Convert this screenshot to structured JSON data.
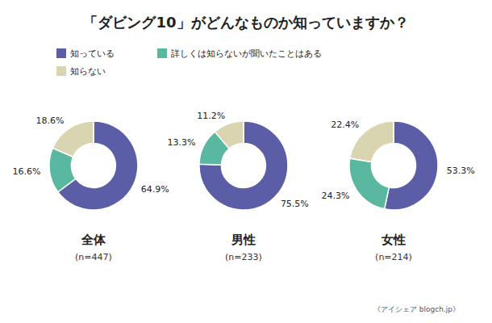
{
  "chart_data": {
    "type": "pie",
    "title": "「ダビング10」がどんなものか知っていますか？",
    "categories": [
      "知っている",
      "詳しくは知らないが聞いたことはある",
      "知らない"
    ],
    "colors": [
      "#5b5ea6",
      "#5bb8a0",
      "#d9d5b0"
    ],
    "series": [
      {
        "name": "全体",
        "subtitle": "(n=447)",
        "values": [
          64.9,
          16.6,
          18.6
        ],
        "value_labels": [
          "64.9%",
          "16.6%",
          "18.6%"
        ]
      },
      {
        "name": "男性",
        "subtitle": "(n=233)",
        "values": [
          75.5,
          13.3,
          11.2
        ],
        "value_labels": [
          "75.5%",
          "13.3%",
          "11.2%"
        ]
      },
      {
        "name": "女性",
        "subtitle": "(n=214)",
        "values": [
          53.3,
          24.3,
          22.4
        ],
        "value_labels": [
          "53.3%",
          "24.3%",
          "22.4%"
        ]
      }
    ],
    "legend": "top",
    "data_labels": true,
    "annotations": [
      "《アイシェア blogch.jp》"
    ]
  }
}
